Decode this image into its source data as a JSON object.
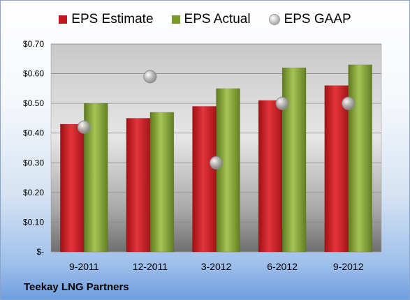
{
  "chart_data": {
    "type": "bar",
    "title": "",
    "xlabel": "",
    "ylabel": "",
    "categories": [
      "9-2011",
      "12-2011",
      "3-2012",
      "6-2012",
      "9-2012"
    ],
    "series": [
      {
        "name": "EPS Estimate",
        "kind": "bar",
        "color": "#c0191e",
        "values": [
          0.43,
          0.45,
          0.49,
          0.51,
          0.56
        ]
      },
      {
        "name": "EPS Actual",
        "kind": "bar",
        "color": "#7a9a2c",
        "values": [
          0.5,
          0.47,
          0.55,
          0.62,
          0.63
        ]
      },
      {
        "name": "EPS GAAP",
        "kind": "marker",
        "color": "#b0b0b0",
        "values": [
          0.42,
          0.59,
          0.3,
          0.5,
          0.5
        ]
      }
    ],
    "ylim": [
      0,
      0.7
    ],
    "yticks": [
      0,
      0.1,
      0.2,
      0.3,
      0.4,
      0.5,
      0.6,
      0.7
    ],
    "ytick_labels": [
      "$-",
      "$0.10",
      "$0.20",
      "$0.30",
      "$0.40",
      "$0.50",
      "$0.60",
      "$0.70"
    ],
    "grid": true,
    "legend_position": "top"
  },
  "legend": {
    "estimate": "EPS Estimate",
    "actual": "EPS Actual",
    "gaap": "EPS GAAP"
  },
  "caption": "Teekay LNG Partners"
}
